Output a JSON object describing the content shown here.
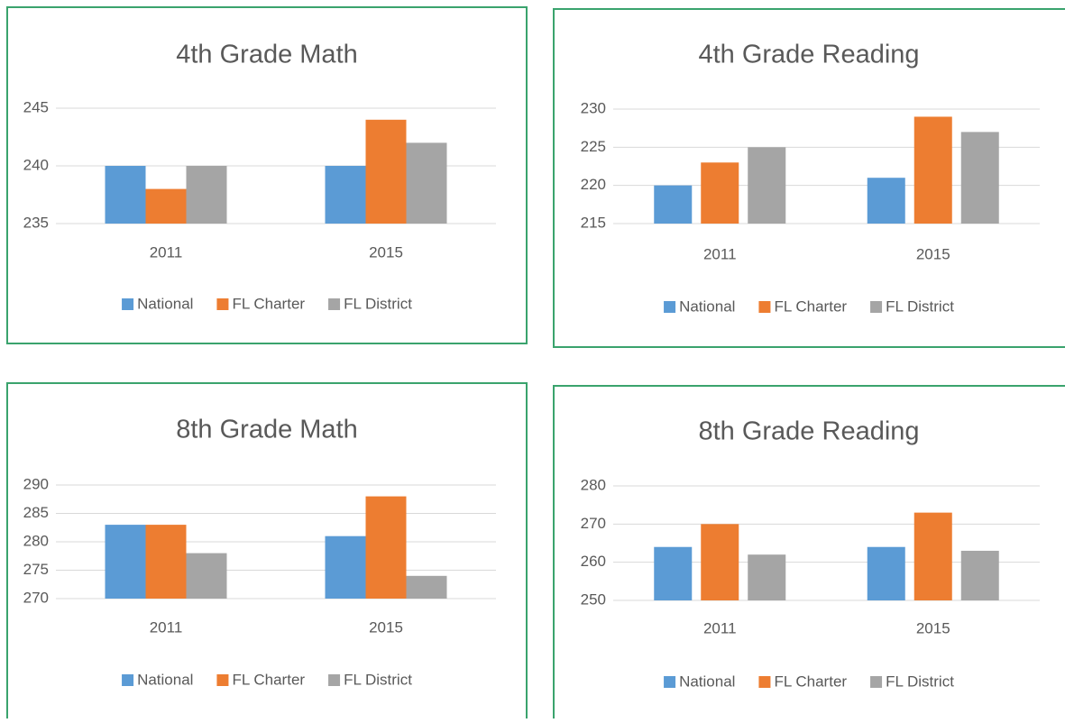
{
  "chart_data": [
    {
      "type": "bar",
      "title": "4th Grade Math",
      "categories": [
        "2011",
        "2015"
      ],
      "series": [
        {
          "name": "National",
          "color": "#5b9bd5",
          "values": [
            240,
            240
          ]
        },
        {
          "name": "FL Charter",
          "color": "#ed7d31",
          "values": [
            238,
            244
          ]
        },
        {
          "name": "FL District",
          "color": "#a5a5a5",
          "values": [
            240,
            242
          ]
        }
      ],
      "ylim": [
        235,
        245
      ],
      "yticks": [
        235,
        240,
        245
      ],
      "grid": true,
      "legend": "bottom"
    },
    {
      "type": "bar",
      "title": "4th Grade Reading",
      "categories": [
        "2011",
        "2015"
      ],
      "series": [
        {
          "name": "National",
          "color": "#5b9bd5",
          "values": [
            220,
            221
          ]
        },
        {
          "name": "FL Charter",
          "color": "#ed7d31",
          "values": [
            223,
            229
          ]
        },
        {
          "name": "FL District",
          "color": "#a5a5a5",
          "values": [
            225,
            227
          ]
        }
      ],
      "ylim": [
        215,
        230
      ],
      "yticks": [
        215,
        220,
        225,
        230
      ],
      "grid": true,
      "legend": "bottom"
    },
    {
      "type": "bar",
      "title": "8th Grade Math",
      "categories": [
        "2011",
        "2015"
      ],
      "series": [
        {
          "name": "National",
          "color": "#5b9bd5",
          "values": [
            283,
            281
          ]
        },
        {
          "name": "FL Charter",
          "color": "#ed7d31",
          "values": [
            283,
            288
          ]
        },
        {
          "name": "FL District",
          "color": "#a5a5a5",
          "values": [
            278,
            274
          ]
        }
      ],
      "ylim": [
        270,
        290
      ],
      "yticks": [
        270,
        275,
        280,
        285,
        290
      ],
      "grid": true,
      "legend": "bottom"
    },
    {
      "type": "bar",
      "title": "8th Grade Reading",
      "categories": [
        "2011",
        "2015"
      ],
      "series": [
        {
          "name": "National",
          "color": "#5b9bd5",
          "values": [
            264,
            264
          ]
        },
        {
          "name": "FL Charter",
          "color": "#ed7d31",
          "values": [
            270,
            273
          ]
        },
        {
          "name": "FL District",
          "color": "#a5a5a5",
          "values": [
            262,
            263
          ]
        }
      ],
      "ylim": [
        250,
        280
      ],
      "yticks": [
        250,
        260,
        270,
        280
      ],
      "grid": true,
      "legend": "bottom"
    }
  ]
}
